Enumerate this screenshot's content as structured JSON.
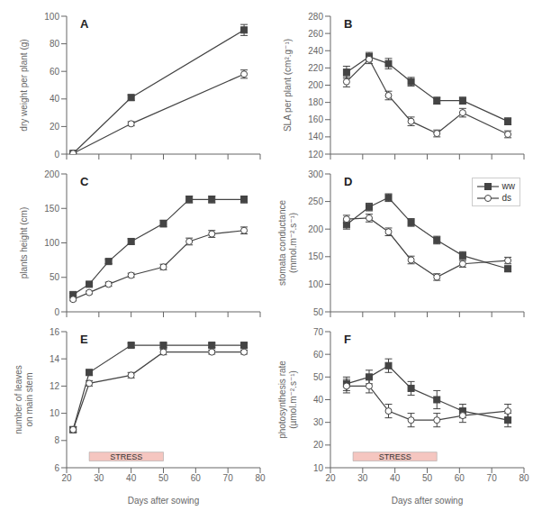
{
  "chart_data": [
    {
      "type": "line",
      "title": "A",
      "ylabel": "dry weight per plant (g)",
      "tick_labels": "y",
      "x": [
        22,
        40,
        75
      ],
      "xlim": [
        20,
        80
      ],
      "xticks": [
        20,
        30,
        40,
        50,
        60,
        70,
        80
      ],
      "ylim": [
        0,
        100
      ],
      "yticks": [
        0,
        20,
        40,
        60,
        80,
        100
      ],
      "series": [
        {
          "name": "ww",
          "color": "#444444",
          "marker": "square",
          "values": [
            0.5,
            41,
            90
          ],
          "errors": [
            0.3,
            2.0,
            4.0
          ]
        },
        {
          "name": "ds",
          "color": "#444444",
          "marker": "open_circle",
          "values": [
            0.5,
            22,
            58
          ],
          "errors": [
            0.3,
            1.5,
            3.0
          ]
        }
      ]
    },
    {
      "type": "line",
      "title": "B",
      "ylabel": "SLA per plant (cm².g⁻¹)",
      "tick_labels": "y",
      "x": [
        25,
        32,
        38,
        45,
        53,
        61,
        75
      ],
      "xlim": [
        20,
        80
      ],
      "xticks": [
        20,
        30,
        40,
        50,
        60,
        70,
        80
      ],
      "ylim": [
        120,
        280
      ],
      "yticks": [
        120,
        140,
        160,
        180,
        200,
        220,
        240,
        260,
        280
      ],
      "series": [
        {
          "name": "ww",
          "color": "#444444",
          "marker": "square",
          "values": [
            215,
            233,
            225,
            204,
            182,
            182,
            158
          ],
          "errors": [
            7,
            5,
            6,
            5,
            4,
            4,
            4
          ]
        },
        {
          "name": "ds",
          "color": "#444444",
          "marker": "open_circle",
          "values": [
            204,
            230,
            188,
            158,
            144,
            168,
            143
          ],
          "errors": [
            6,
            5,
            5,
            5,
            4,
            5,
            4
          ]
        }
      ]
    },
    {
      "type": "line",
      "title": "C",
      "ylabel": "plants height (cm)",
      "tick_labels": "y",
      "x": [
        22,
        27,
        33,
        40,
        50,
        58,
        65,
        75
      ],
      "xlim": [
        20,
        80
      ],
      "xticks": [
        20,
        30,
        40,
        50,
        60,
        70,
        80
      ],
      "ylim": [
        0,
        200
      ],
      "yticks": [
        0,
        50,
        100,
        150,
        200
      ],
      "series": [
        {
          "name": "ww",
          "color": "#444444",
          "marker": "square",
          "values": [
            25,
            40,
            73,
            102,
            128,
            163,
            163,
            163
          ],
          "errors": [
            2,
            2,
            3,
            4,
            5,
            5,
            5,
            5
          ]
        },
        {
          "name": "ds",
          "color": "#444444",
          "marker": "open_circle",
          "values": [
            18,
            28,
            40,
            53,
            65,
            102,
            113,
            118
          ],
          "errors": [
            2,
            2,
            3,
            3,
            4,
            5,
            5,
            5
          ]
        }
      ]
    },
    {
      "type": "line",
      "title": "D",
      "ylabel": "stomata conductance\n(mmol.m⁻².s⁻¹)",
      "tick_labels": "y",
      "legend": "upper right",
      "x": [
        25,
        32,
        38,
        45,
        53,
        61,
        75
      ],
      "xlim": [
        20,
        80
      ],
      "xticks": [
        20,
        30,
        40,
        50,
        60,
        70,
        80
      ],
      "ylim": [
        50,
        300
      ],
      "yticks": [
        50,
        100,
        150,
        200,
        250,
        300
      ],
      "series": [
        {
          "name": "ww",
          "color": "#444444",
          "marker": "square",
          "values": [
            208,
            240,
            257,
            212,
            180,
            152,
            128
          ],
          "errors": [
            8,
            7,
            7,
            7,
            7,
            7,
            5
          ]
        },
        {
          "name": "ds",
          "color": "#444444",
          "marker": "open_circle",
          "values": [
            218,
            220,
            195,
            144,
            113,
            137,
            143
          ],
          "errors": [
            7,
            7,
            7,
            7,
            6,
            6,
            6
          ]
        }
      ]
    },
    {
      "type": "line",
      "title": "E",
      "ylabel": "number of leaves\non main stem",
      "xlabel": "Days after sowing",
      "x": [
        22,
        27,
        40,
        50,
        65,
        75
      ],
      "xlim": [
        20,
        80
      ],
      "xticks": [
        20,
        30,
        40,
        50,
        60,
        70,
        80
      ],
      "ylim": [
        6,
        16
      ],
      "yticks": [
        6,
        8,
        10,
        12,
        14,
        16
      ],
      "annotations": [
        {
          "text": "STRESS",
          "x": [
            27,
            50
          ],
          "color": "#f5c6c0"
        }
      ],
      "series": [
        {
          "name": "ww",
          "color": "#444444",
          "marker": "square",
          "values": [
            8.8,
            13.0,
            15.0,
            15.0,
            15.0,
            15.0
          ],
          "errors": [
            0.2,
            0.2,
            0.15,
            0.15,
            0.15,
            0.15
          ]
        },
        {
          "name": "ds",
          "color": "#444444",
          "marker": "open_circle",
          "values": [
            8.8,
            12.2,
            12.8,
            14.5,
            14.5,
            14.5
          ],
          "errors": [
            0.2,
            0.2,
            0.2,
            0.2,
            0.15,
            0.15
          ]
        }
      ]
    },
    {
      "type": "line",
      "title": "F",
      "ylabel": "photosynthesis rate\n(µmol.m⁻².s⁻¹)",
      "xlabel": "Days after sowing",
      "x": [
        25,
        32,
        38,
        45,
        53,
        61,
        75
      ],
      "xlim": [
        20,
        80
      ],
      "xticks": [
        20,
        30,
        40,
        50,
        60,
        70,
        80
      ],
      "ylim": [
        10,
        70
      ],
      "yticks": [
        10,
        20,
        30,
        40,
        50,
        60,
        70
      ],
      "annotations": [
        {
          "text": "STRESS",
          "x": [
            27,
            53
          ],
          "color": "#f5c6c0"
        }
      ],
      "series": [
        {
          "name": "ww",
          "color": "#444444",
          "marker": "square",
          "values": [
            47,
            50,
            55,
            45,
            40,
            35,
            31
          ],
          "errors": [
            3,
            3,
            3,
            3,
            4,
            3,
            3
          ]
        },
        {
          "name": "ds",
          "color": "#444444",
          "marker": "open_circle",
          "values": [
            46,
            46,
            35,
            31,
            31,
            33,
            35
          ],
          "errors": [
            3,
            3,
            3,
            3,
            3,
            3,
            3
          ]
        }
      ]
    }
  ]
}
